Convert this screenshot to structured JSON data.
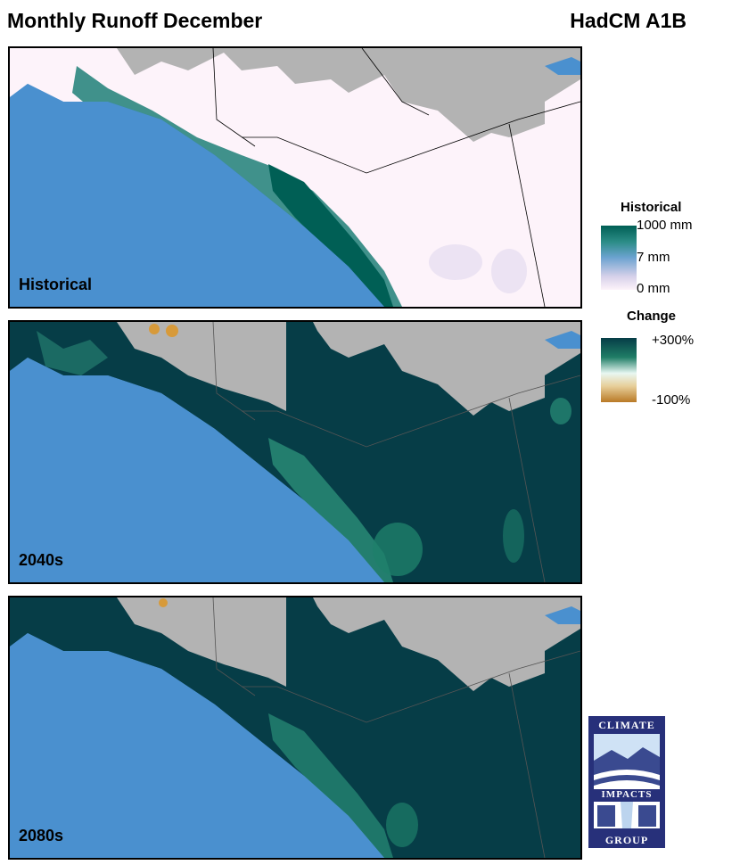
{
  "header": {
    "title": "Monthly Runoff December",
    "scenario": "HadCM A1B"
  },
  "panels": [
    {
      "label": "Historical"
    },
    {
      "label": "2040s"
    },
    {
      "label": "2080s"
    }
  ],
  "legend_historical": {
    "title": "Historical",
    "ticks": [
      "1000 mm",
      "7 mm",
      "0 mm"
    ]
  },
  "legend_change": {
    "title": "Change",
    "ticks": [
      "+300%",
      "-100%"
    ]
  },
  "logo": {
    "top": "CLIMATE",
    "middle": "IMPACTS",
    "bottom": "GROUP"
  },
  "colors": {
    "ocean": "#4a90cf",
    "no_data": "#b3b3b3",
    "historical_low": "#fdf3fa",
    "historical_mid": "#6ca3d0",
    "historical_high": "#005f55",
    "change_high": "#063d47",
    "change_mid": "#e8f7f2",
    "change_low": "#b97a26"
  }
}
